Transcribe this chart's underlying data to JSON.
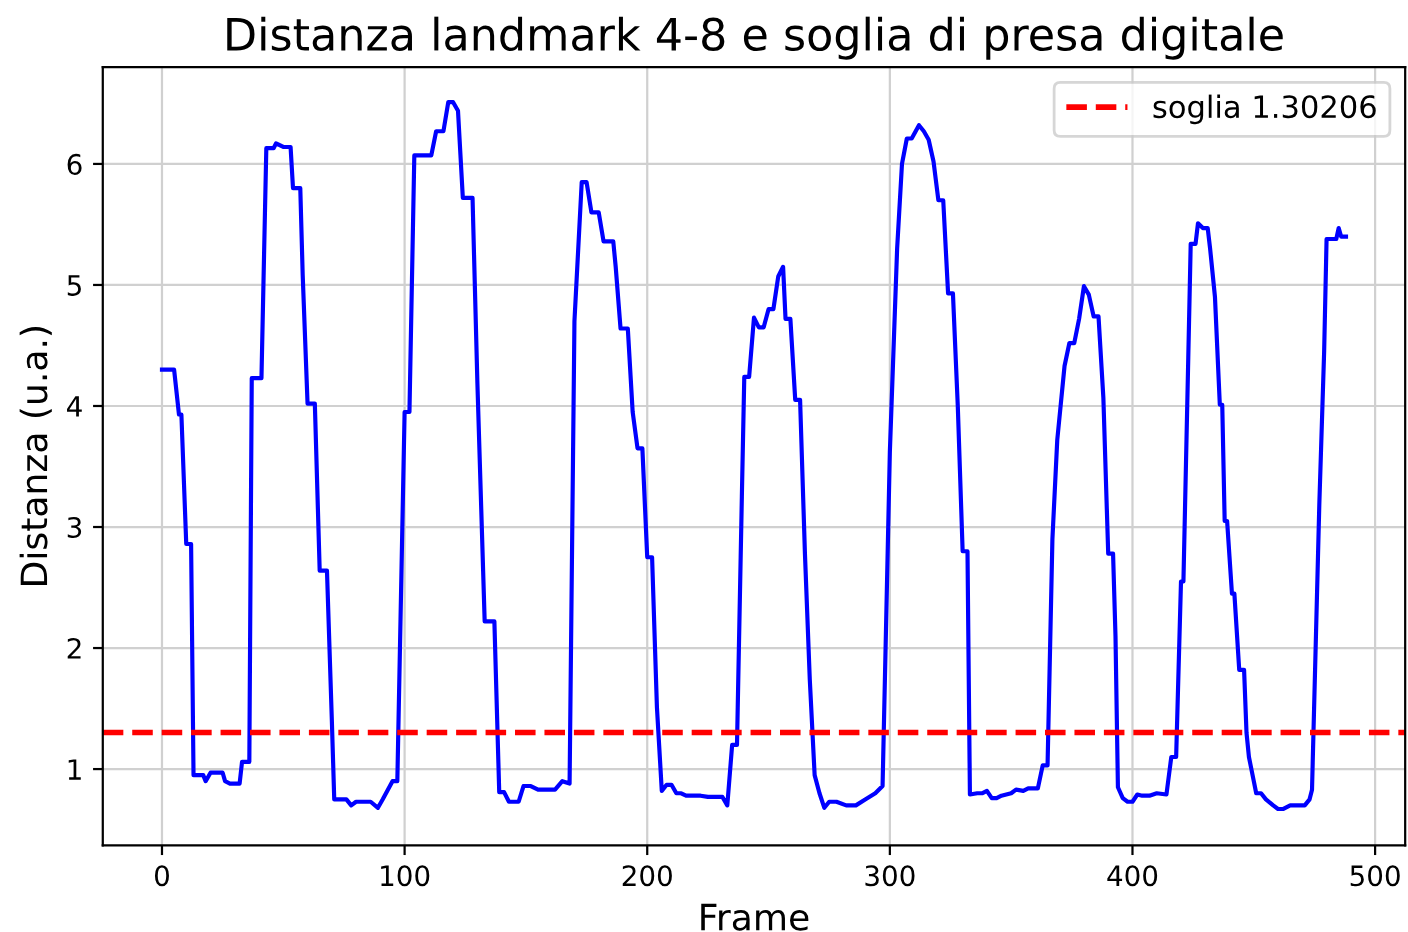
{
  "chart_data": {
    "type": "line",
    "title": "Distanza landmark 4-8 e soglia di presa digitale",
    "xlabel": "Frame",
    "ylabel": "Distanza (u.a.)",
    "x": [
      0,
      5,
      7,
      8,
      10,
      12,
      13,
      17,
      18,
      20,
      25,
      26,
      28,
      32,
      33,
      36,
      37,
      41,
      43,
      46,
      47,
      50,
      53,
      54,
      57,
      58,
      60,
      63,
      65,
      68,
      70,
      71,
      76,
      78,
      80,
      86,
      89,
      91,
      95,
      97,
      100,
      102,
      104,
      111,
      113,
      116,
      118,
      120,
      122,
      124,
      128,
      130,
      133,
      137,
      139,
      141,
      143,
      147,
      149,
      152,
      155,
      162,
      165,
      168,
      170,
      173,
      175,
      177,
      180,
      182,
      186,
      187,
      189,
      192,
      194,
      196,
      198,
      200,
      202,
      204,
      206,
      208,
      210,
      212,
      214,
      216,
      222,
      225,
      231,
      233,
      235,
      237,
      239,
      240,
      242,
      244,
      246,
      248,
      250,
      252,
      254,
      256,
      257,
      259,
      261,
      263,
      265,
      267,
      269,
      271,
      273,
      275,
      278,
      282,
      286,
      290,
      294,
      297,
      300,
      303,
      305,
      307,
      309,
      312,
      314,
      316,
      318,
      320,
      322,
      324,
      326,
      328,
      330,
      332,
      333,
      336,
      338,
      340,
      342,
      344,
      346,
      350,
      352,
      355,
      357,
      361,
      363,
      365,
      367,
      369,
      372,
      374,
      376,
      378,
      380,
      382,
      384,
      386,
      388,
      390,
      392,
      393,
      394,
      396,
      398,
      400,
      402,
      404,
      407,
      410,
      414,
      416,
      418,
      420,
      421,
      423,
      424,
      426,
      427,
      429,
      431,
      432,
      434,
      436,
      437,
      438,
      439,
      441,
      442,
      444,
      446,
      447,
      448,
      450,
      451,
      453,
      455,
      458,
      460,
      462,
      465,
      471,
      473,
      474,
      477,
      479,
      480,
      484,
      485,
      486,
      488
    ],
    "series": [
      {
        "color": "#0000ff",
        "values": [
          4.3,
          4.3,
          3.93,
          3.93,
          2.86,
          2.86,
          0.95,
          0.95,
          0.9,
          0.97,
          0.97,
          0.9,
          0.88,
          0.88,
          1.06,
          1.06,
          4.23,
          4.23,
          6.13,
          6.13,
          6.17,
          6.14,
          6.14,
          5.8,
          5.8,
          5.08,
          4.02,
          4.02,
          2.64,
          2.64,
          1.41,
          0.75,
          0.75,
          0.7,
          0.73,
          0.73,
          0.68,
          0.75,
          0.9,
          0.9,
          3.95,
          3.95,
          6.07,
          6.07,
          6.27,
          6.27,
          6.51,
          6.51,
          6.44,
          5.72,
          5.72,
          4.19,
          2.22,
          2.22,
          0.81,
          0.81,
          0.73,
          0.73,
          0.86,
          0.86,
          0.83,
          0.83,
          0.9,
          0.88,
          4.7,
          5.85,
          5.85,
          5.6,
          5.6,
          5.36,
          5.36,
          5.15,
          4.64,
          4.64,
          3.95,
          3.65,
          3.65,
          2.75,
          2.75,
          1.51,
          0.82,
          0.87,
          0.87,
          0.8,
          0.8,
          0.78,
          0.78,
          0.77,
          0.77,
          0.7,
          1.2,
          1.2,
          3.25,
          4.24,
          4.24,
          4.73,
          4.65,
          4.65,
          4.8,
          4.8,
          5.07,
          5.15,
          4.72,
          4.72,
          4.05,
          4.05,
          2.78,
          1.74,
          0.95,
          0.8,
          0.68,
          0.73,
          0.73,
          0.7,
          0.7,
          0.75,
          0.8,
          0.86,
          3.62,
          5.3,
          6.0,
          6.21,
          6.21,
          6.32,
          6.27,
          6.2,
          6.02,
          5.7,
          5.7,
          4.93,
          4.93,
          4.0,
          2.8,
          2.8,
          0.79,
          0.8,
          0.8,
          0.82,
          0.76,
          0.76,
          0.78,
          0.8,
          0.83,
          0.82,
          0.84,
          0.84,
          1.03,
          1.03,
          2.9,
          3.72,
          4.33,
          4.52,
          4.52,
          4.72,
          4.99,
          4.92,
          4.74,
          4.74,
          4.07,
          2.78,
          2.78,
          2.1,
          0.85,
          0.76,
          0.73,
          0.73,
          0.79,
          0.78,
          0.78,
          0.8,
          0.79,
          1.1,
          1.1,
          2.55,
          2.55,
          4.4,
          5.34,
          5.34,
          5.51,
          5.47,
          5.47,
          5.3,
          4.9,
          4.01,
          4.01,
          3.05,
          3.05,
          2.45,
          2.45,
          1.82,
          1.82,
          1.3,
          1.1,
          0.9,
          0.8,
          0.8,
          0.75,
          0.7,
          0.67,
          0.67,
          0.7,
          0.7,
          0.75,
          0.83,
          3.18,
          4.45,
          5.38,
          5.38,
          5.47,
          5.4,
          5.4
        ]
      }
    ],
    "ref_lines": [
      {
        "axis": "y",
        "value": 1.30206,
        "label": "soglia 1.30206",
        "color": "#ff0000",
        "line_style": "dashed"
      }
    ],
    "xlim": [
      -24.4,
      512.4
    ],
    "ylim": [
      0.37,
      6.8
    ],
    "xticks": [
      0,
      100,
      200,
      300,
      400,
      500
    ],
    "yticks": [
      1,
      2,
      3,
      4,
      5,
      6
    ],
    "grid": true,
    "legend": "top right",
    "marker": "none",
    "line_style": "solid"
  }
}
